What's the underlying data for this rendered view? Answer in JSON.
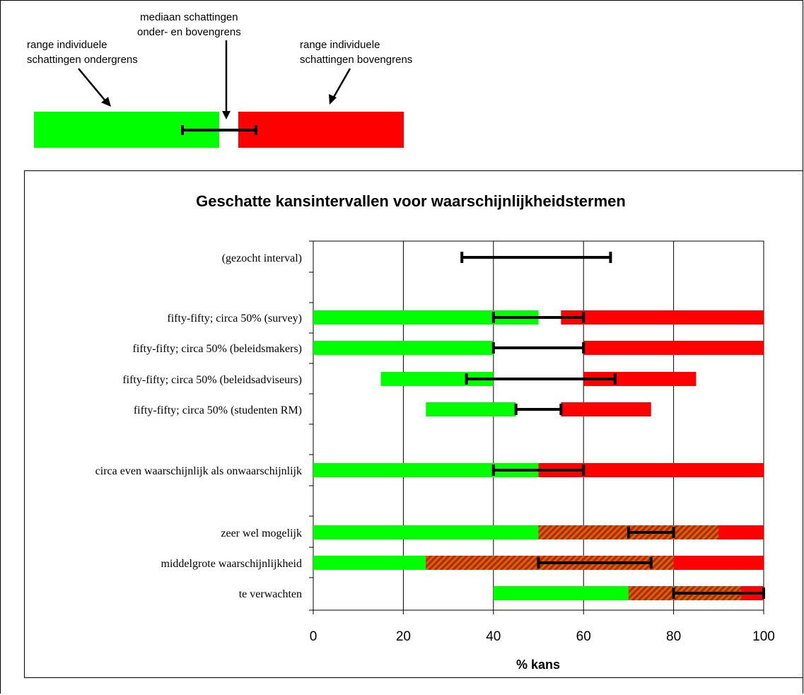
{
  "legend": {
    "label_lower": "range individuele\nschattingen ondergrens",
    "label_median": "mediaan schattingen\nonder- en bovengrens",
    "label_upper": "range individuele\nschattingen bovengrens",
    "colors": {
      "lower": "#00ff00",
      "upper": "#ff0000",
      "median_bar": "#000000"
    }
  },
  "chart_data": {
    "type": "bar",
    "title": "Geschatte kansintervallen voor waarschijnlijkheidstermen",
    "xlabel": "% kans",
    "xlim": [
      0,
      100
    ],
    "xticks": [
      0,
      20,
      40,
      60,
      80,
      100
    ],
    "grid": true,
    "categories": [
      "(gezocht interval)",
      "fifty-fifty; circa 50% (survey)",
      "fifty-fifty; circa 50% (beleidsmakers)",
      "fifty-fifty; circa 50% (beleidsadviseurs)",
      "fifty-fifty; circa 50% (studenten RM)",
      "circa even waarschijnlijk als onwaarschijnlijk",
      "zeer wel mogelijk",
      "middelgrote waarschijnlijkheid",
      "te verwachten"
    ],
    "series": [
      {
        "key": "lower_range",
        "color": "#00ff00",
        "values": [
          null,
          [
            0,
            50
          ],
          [
            0,
            40
          ],
          [
            15,
            40
          ],
          [
            25,
            45
          ],
          [
            0,
            50
          ],
          [
            0,
            90
          ],
          [
            0,
            80
          ],
          [
            40,
            95
          ]
        ]
      },
      {
        "key": "upper_range",
        "color": "#ff0000",
        "values": [
          null,
          [
            55,
            100
          ],
          [
            60,
            100
          ],
          [
            60,
            85
          ],
          [
            55,
            75
          ],
          [
            50,
            100
          ],
          [
            50,
            100
          ],
          [
            25,
            100
          ],
          [
            70,
            100
          ]
        ]
      },
      {
        "key": "median_interval",
        "color": "#000000",
        "values": [
          [
            33,
            66
          ],
          [
            40,
            60
          ],
          [
            40,
            60
          ],
          [
            34,
            67
          ],
          [
            45,
            55
          ],
          [
            40,
            60
          ],
          [
            70,
            80
          ],
          [
            50,
            75
          ],
          [
            80,
            100
          ]
        ]
      }
    ]
  }
}
